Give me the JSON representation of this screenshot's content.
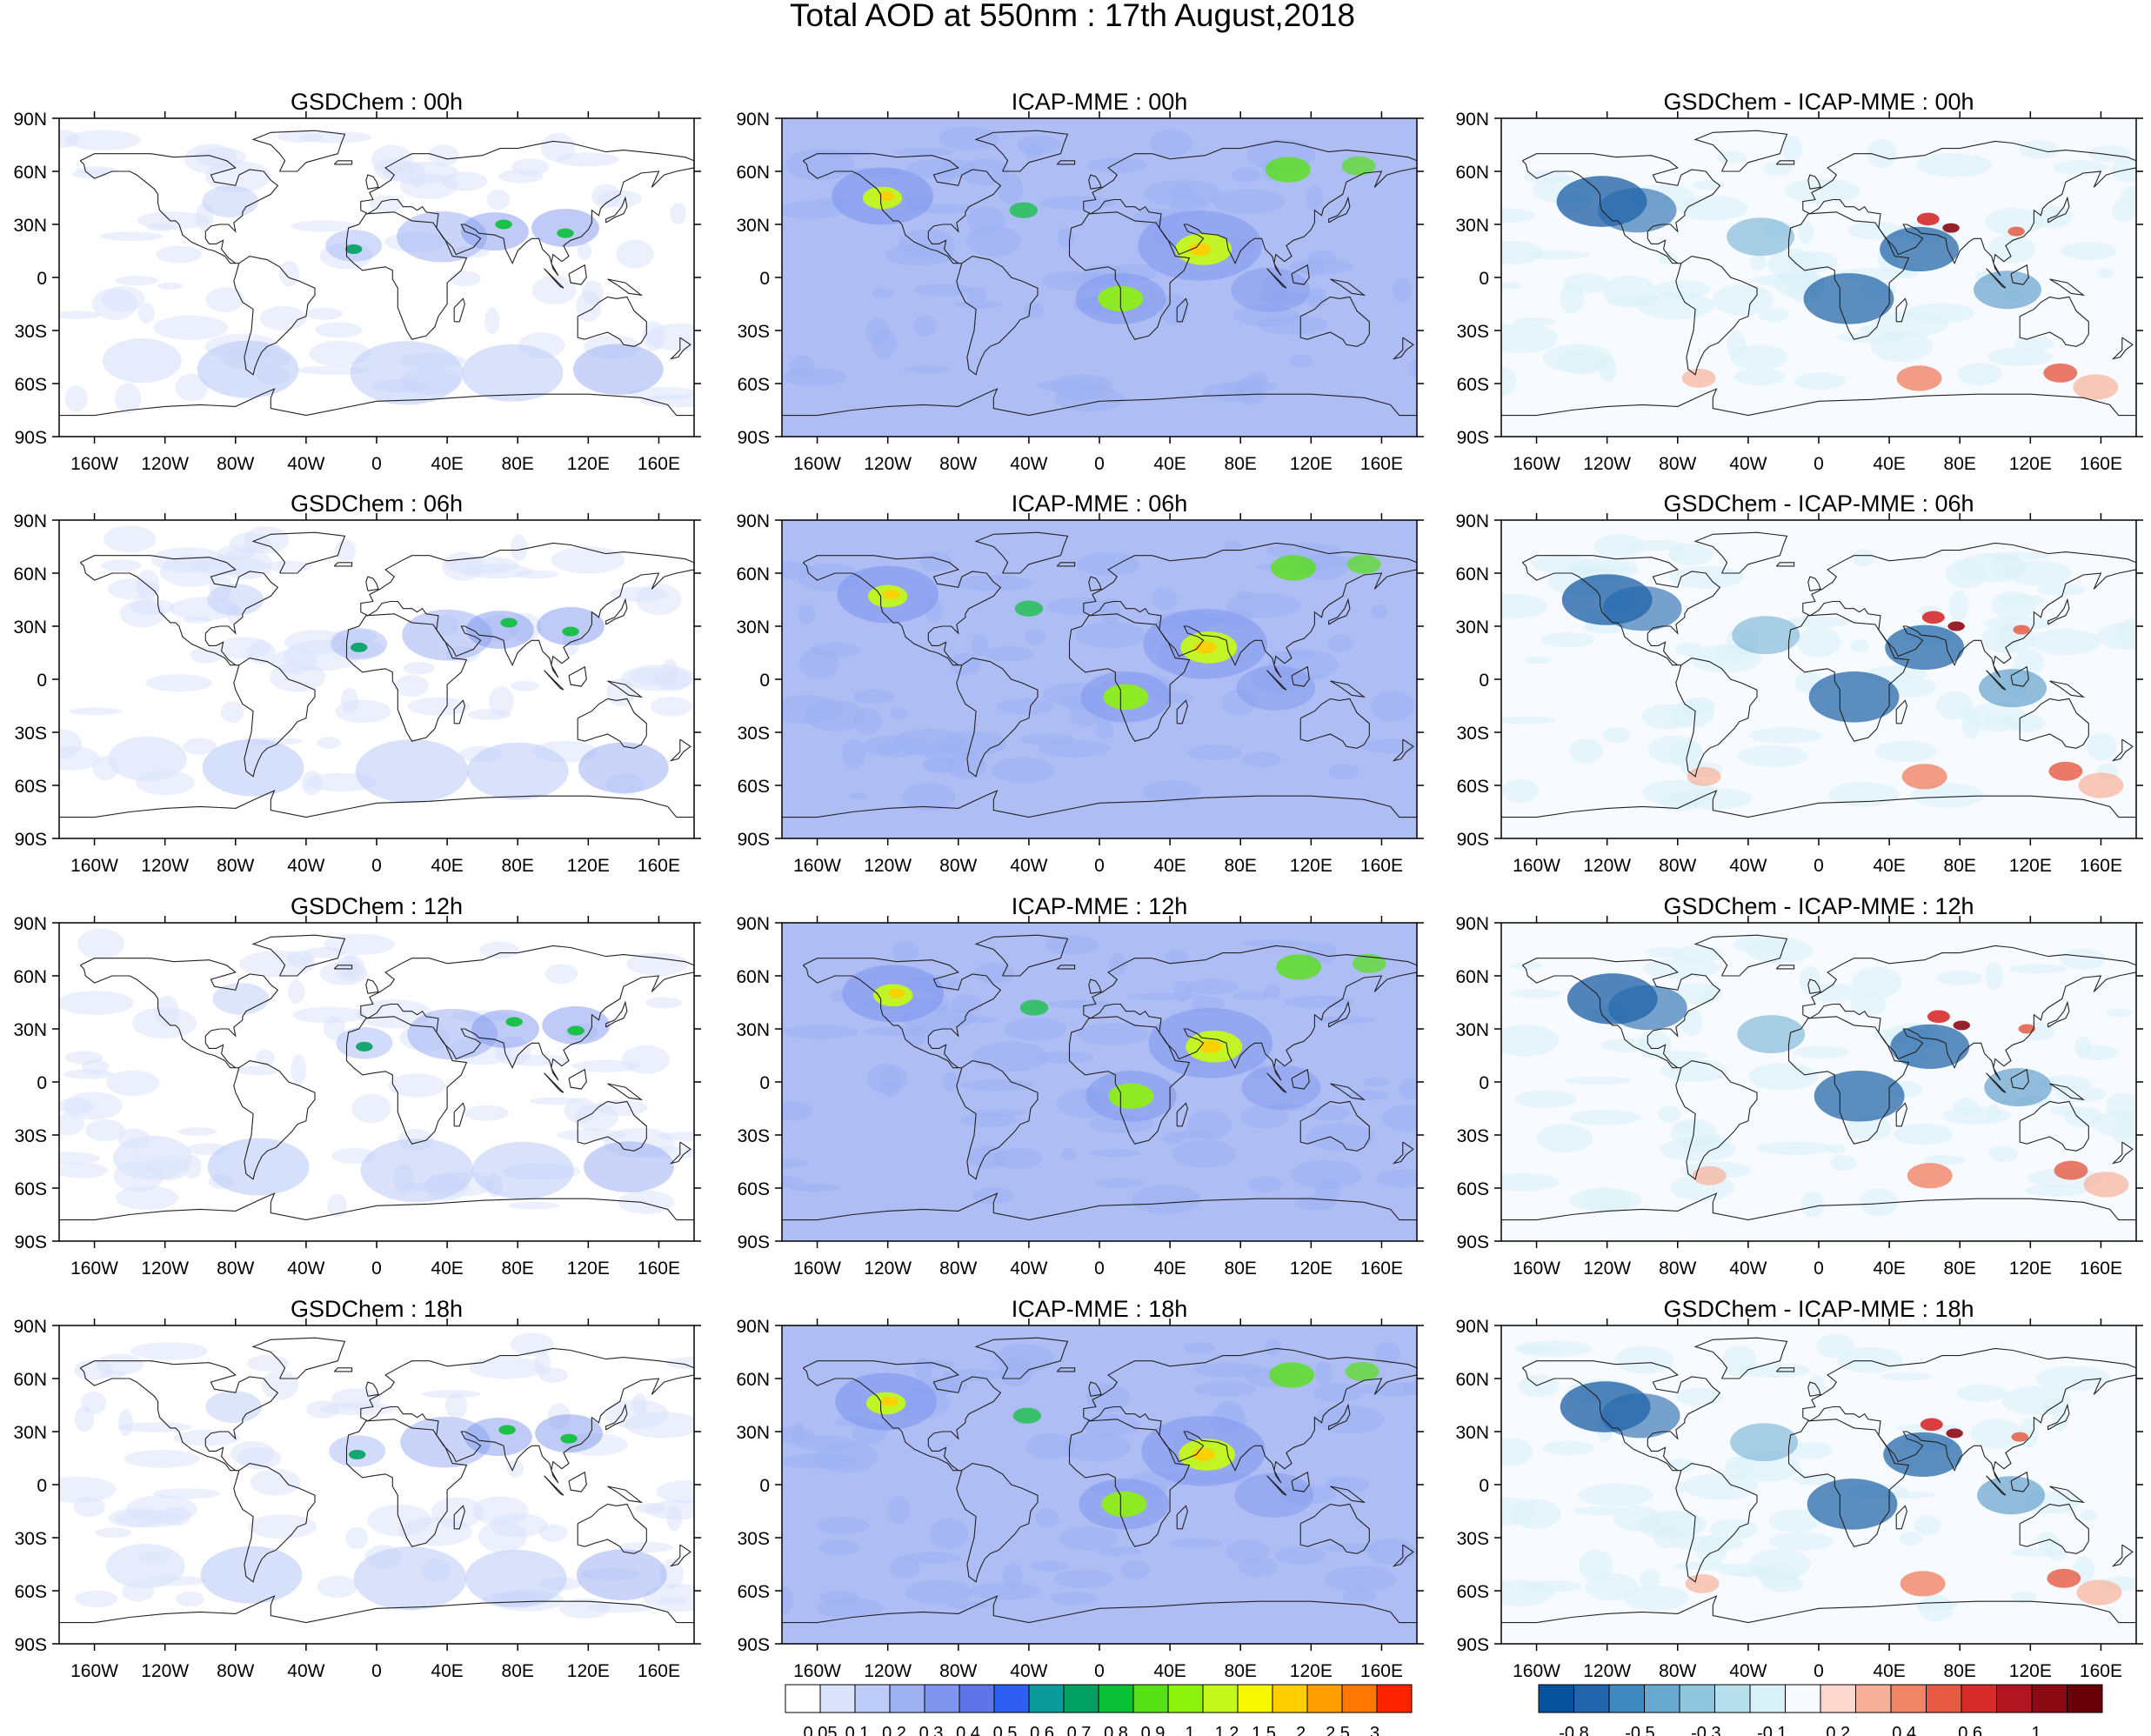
{
  "title": "Total AOD at 550nm : 17th August,2018",
  "columns": [
    {
      "name": "GSDChem",
      "kind": "aod"
    },
    {
      "name": "ICAP-MME",
      "kind": "aod_icap"
    },
    {
      "name": "GSDChem - ICAP-MME",
      "kind": "diff"
    }
  ],
  "times": [
    "00h",
    "06h",
    "12h",
    "18h"
  ],
  "panel_titles": [
    [
      "GSDChem : 00h",
      "ICAP-MME : 00h",
      "GSDChem - ICAP-MME : 00h"
    ],
    [
      "GSDChem : 06h",
      "ICAP-MME : 06h",
      "GSDChem - ICAP-MME : 06h"
    ],
    [
      "GSDChem : 12h",
      "ICAP-MME : 12h",
      "GSDChem - ICAP-MME : 12h"
    ],
    [
      "GSDChem : 18h",
      "ICAP-MME : 18h",
      "GSDChem - ICAP-MME : 18h"
    ]
  ],
  "lat_labels": [
    "90N",
    "60N",
    "30N",
    "0",
    "30S",
    "60S",
    "90S"
  ],
  "lon_labels": [
    "160W",
    "120W",
    "80W",
    "40W",
    "0",
    "40E",
    "80E",
    "120E",
    "160E"
  ],
  "aod_colorbar": {
    "labels": [
      "0.05",
      "0.1",
      "0.2",
      "0.3",
      "0.4",
      "0.5",
      "0.6",
      "0.7",
      "0.8",
      "0.9",
      "1",
      "1.2",
      "1.5",
      "2",
      "2.5",
      "3"
    ],
    "colors": [
      "#ffffff",
      "#dce4fb",
      "#bccbf7",
      "#9cb0f2",
      "#7f95ee",
      "#5f74e6",
      "#2f5ff2",
      "#0c9a9a",
      "#00a062",
      "#09c036",
      "#57e018",
      "#8ef20c",
      "#c4f81a",
      "#f6f700",
      "#ffcf00",
      "#ffa000",
      "#ff7600",
      "#ff2400"
    ]
  },
  "diff_colorbar": {
    "labels": [
      "-0.8",
      "-0.5",
      "-0.3",
      "-0.1",
      "0.2",
      "0.4",
      "0.6",
      "1"
    ],
    "colors": [
      "#08519c",
      "#2166ac",
      "#3f88c0",
      "#67a9cf",
      "#8ec6dd",
      "#b7e0ec",
      "#d8f0f7",
      "#f7fbff",
      "#fbd7cd",
      "#f6b09a",
      "#f08466",
      "#e55a43",
      "#d52b2b",
      "#b11520",
      "#8c0a14",
      "#670008"
    ]
  }
}
